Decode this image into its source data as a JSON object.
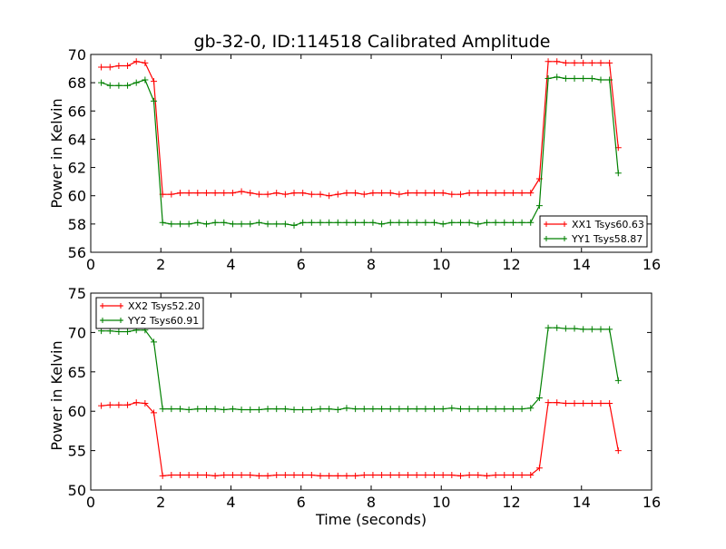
{
  "chart_data": [
    {
      "type": "line",
      "title": "gb-32-0, ID:114518 Calibrated Amplitude",
      "xlabel": "",
      "ylabel": "Power in Kelvin",
      "xlim": [
        0,
        16
      ],
      "ylim": [
        56,
        70
      ],
      "xticks": [
        0,
        2,
        4,
        6,
        8,
        10,
        12,
        14,
        16
      ],
      "yticks": [
        56,
        58,
        60,
        62,
        64,
        66,
        68,
        70
      ],
      "legend_position": "lower-right",
      "x": [
        0.3,
        0.55,
        0.8,
        1.05,
        1.3,
        1.55,
        1.8,
        2.05,
        2.3,
        2.55,
        2.8,
        3.05,
        3.3,
        3.55,
        3.8,
        4.05,
        4.3,
        4.55,
        4.8,
        5.05,
        5.3,
        5.55,
        5.8,
        6.05,
        6.3,
        6.55,
        6.8,
        7.05,
        7.3,
        7.55,
        7.8,
        8.05,
        8.3,
        8.55,
        8.8,
        9.05,
        9.3,
        9.55,
        9.8,
        10.05,
        10.3,
        10.55,
        10.8,
        11.05,
        11.3,
        11.55,
        11.8,
        12.05,
        12.3,
        12.55,
        12.8,
        13.05,
        13.3,
        13.55,
        13.8,
        14.05,
        14.3,
        14.55,
        14.8,
        15.05
      ],
      "series": [
        {
          "name": "XX1 Tsys60.63",
          "color": "#ff0000",
          "values": [
            69.1,
            69.1,
            69.2,
            69.2,
            69.5,
            69.4,
            68.1,
            60.1,
            60.1,
            60.2,
            60.2,
            60.2,
            60.2,
            60.2,
            60.2,
            60.2,
            60.3,
            60.2,
            60.1,
            60.1,
            60.2,
            60.1,
            60.2,
            60.2,
            60.1,
            60.1,
            60.0,
            60.1,
            60.2,
            60.2,
            60.1,
            60.2,
            60.2,
            60.2,
            60.1,
            60.2,
            60.2,
            60.2,
            60.2,
            60.2,
            60.1,
            60.1,
            60.2,
            60.2,
            60.2,
            60.2,
            60.2,
            60.2,
            60.2,
            60.2,
            61.2,
            69.5,
            69.5,
            69.4,
            69.4,
            69.4,
            69.4,
            69.4,
            69.4,
            63.4
          ]
        },
        {
          "name": "YY1 Tsys58.87",
          "color": "#008000",
          "values": [
            68.0,
            67.8,
            67.8,
            67.8,
            68.0,
            68.2,
            66.7,
            58.1,
            58.0,
            58.0,
            58.0,
            58.1,
            58.0,
            58.1,
            58.1,
            58.0,
            58.0,
            58.0,
            58.1,
            58.0,
            58.0,
            58.0,
            57.9,
            58.1,
            58.1,
            58.1,
            58.1,
            58.1,
            58.1,
            58.1,
            58.1,
            58.1,
            58.0,
            58.1,
            58.1,
            58.1,
            58.1,
            58.1,
            58.1,
            58.0,
            58.1,
            58.1,
            58.1,
            58.0,
            58.1,
            58.1,
            58.1,
            58.1,
            58.1,
            58.1,
            59.3,
            68.3,
            68.4,
            68.3,
            68.3,
            68.3,
            68.3,
            68.2,
            68.2,
            61.6
          ]
        }
      ]
    },
    {
      "type": "line",
      "title": "",
      "xlabel": "Time (seconds)",
      "ylabel": "Power in Kelvin",
      "xlim": [
        0,
        16
      ],
      "ylim": [
        50,
        75
      ],
      "xticks": [
        0,
        2,
        4,
        6,
        8,
        10,
        12,
        14,
        16
      ],
      "yticks": [
        50,
        55,
        60,
        65,
        70,
        75
      ],
      "legend_position": "upper-left",
      "x": [
        0.3,
        0.55,
        0.8,
        1.05,
        1.3,
        1.55,
        1.8,
        2.05,
        2.3,
        2.55,
        2.8,
        3.05,
        3.3,
        3.55,
        3.8,
        4.05,
        4.3,
        4.55,
        4.8,
        5.05,
        5.3,
        5.55,
        5.8,
        6.05,
        6.3,
        6.55,
        6.8,
        7.05,
        7.3,
        7.55,
        7.8,
        8.05,
        8.3,
        8.55,
        8.8,
        9.05,
        9.3,
        9.55,
        9.8,
        10.05,
        10.3,
        10.55,
        10.8,
        11.05,
        11.3,
        11.55,
        11.8,
        12.05,
        12.3,
        12.55,
        12.8,
        13.05,
        13.3,
        13.55,
        13.8,
        14.05,
        14.3,
        14.55,
        14.8,
        15.05
      ],
      "series": [
        {
          "name": "XX2 Tsys52.20",
          "color": "#ff0000",
          "values": [
            60.7,
            60.8,
            60.8,
            60.8,
            61.1,
            61.0,
            59.8,
            51.8,
            51.9,
            51.9,
            51.9,
            51.9,
            51.9,
            51.8,
            51.9,
            51.9,
            51.9,
            51.9,
            51.8,
            51.8,
            51.9,
            51.9,
            51.9,
            51.9,
            51.9,
            51.8,
            51.8,
            51.8,
            51.8,
            51.8,
            51.9,
            51.9,
            51.9,
            51.9,
            51.9,
            51.9,
            51.9,
            51.9,
            51.9,
            51.9,
            51.9,
            51.8,
            51.9,
            51.9,
            51.8,
            51.9,
            51.9,
            51.9,
            51.9,
            51.9,
            52.8,
            61.1,
            61.1,
            61.0,
            61.0,
            61.0,
            61.0,
            61.0,
            61.0,
            55.0
          ]
        },
        {
          "name": "YY2 Tsys60.91",
          "color": "#008000",
          "values": [
            70.2,
            70.2,
            70.1,
            70.1,
            70.3,
            70.3,
            68.8,
            60.3,
            60.3,
            60.3,
            60.2,
            60.3,
            60.3,
            60.3,
            60.2,
            60.3,
            60.2,
            60.2,
            60.2,
            60.3,
            60.3,
            60.3,
            60.2,
            60.2,
            60.2,
            60.3,
            60.3,
            60.2,
            60.4,
            60.3,
            60.3,
            60.3,
            60.3,
            60.3,
            60.3,
            60.3,
            60.3,
            60.3,
            60.3,
            60.3,
            60.4,
            60.3,
            60.3,
            60.3,
            60.3,
            60.3,
            60.3,
            60.3,
            60.3,
            60.4,
            61.7,
            70.6,
            70.6,
            70.5,
            70.5,
            70.4,
            70.4,
            70.4,
            70.4,
            63.9
          ]
        }
      ]
    }
  ]
}
